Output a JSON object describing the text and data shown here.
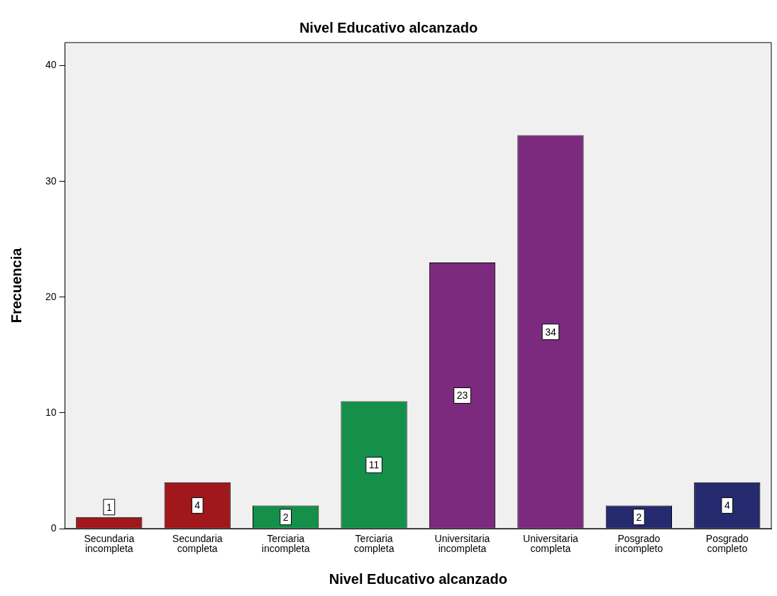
{
  "chart_data": {
    "type": "bar",
    "title": "Nivel Educativo alcanzado",
    "xlabel": "Nivel Educativo alcanzado",
    "ylabel": "Frecuencia",
    "categories": [
      "Secundaria incompleta",
      "Secundaria completa",
      "Terciaria incompleta",
      "Terciaria completa",
      "Universitaria incompleta",
      "Universitaria completa",
      "Posgrado incompleto",
      "Posgrado completo"
    ],
    "values": [
      1,
      4,
      2,
      11,
      23,
      34,
      2,
      4
    ],
    "colors": [
      "#a0171c",
      "#a0171c",
      "#14904a",
      "#14904a",
      "#7b2a7e",
      "#7b2a7e",
      "#262a6e",
      "#262a6e"
    ],
    "ylim": [
      0,
      42
    ],
    "yticks": [
      0,
      10,
      20,
      30,
      40
    ],
    "grid": false,
    "legend": false,
    "data_labels": true
  }
}
